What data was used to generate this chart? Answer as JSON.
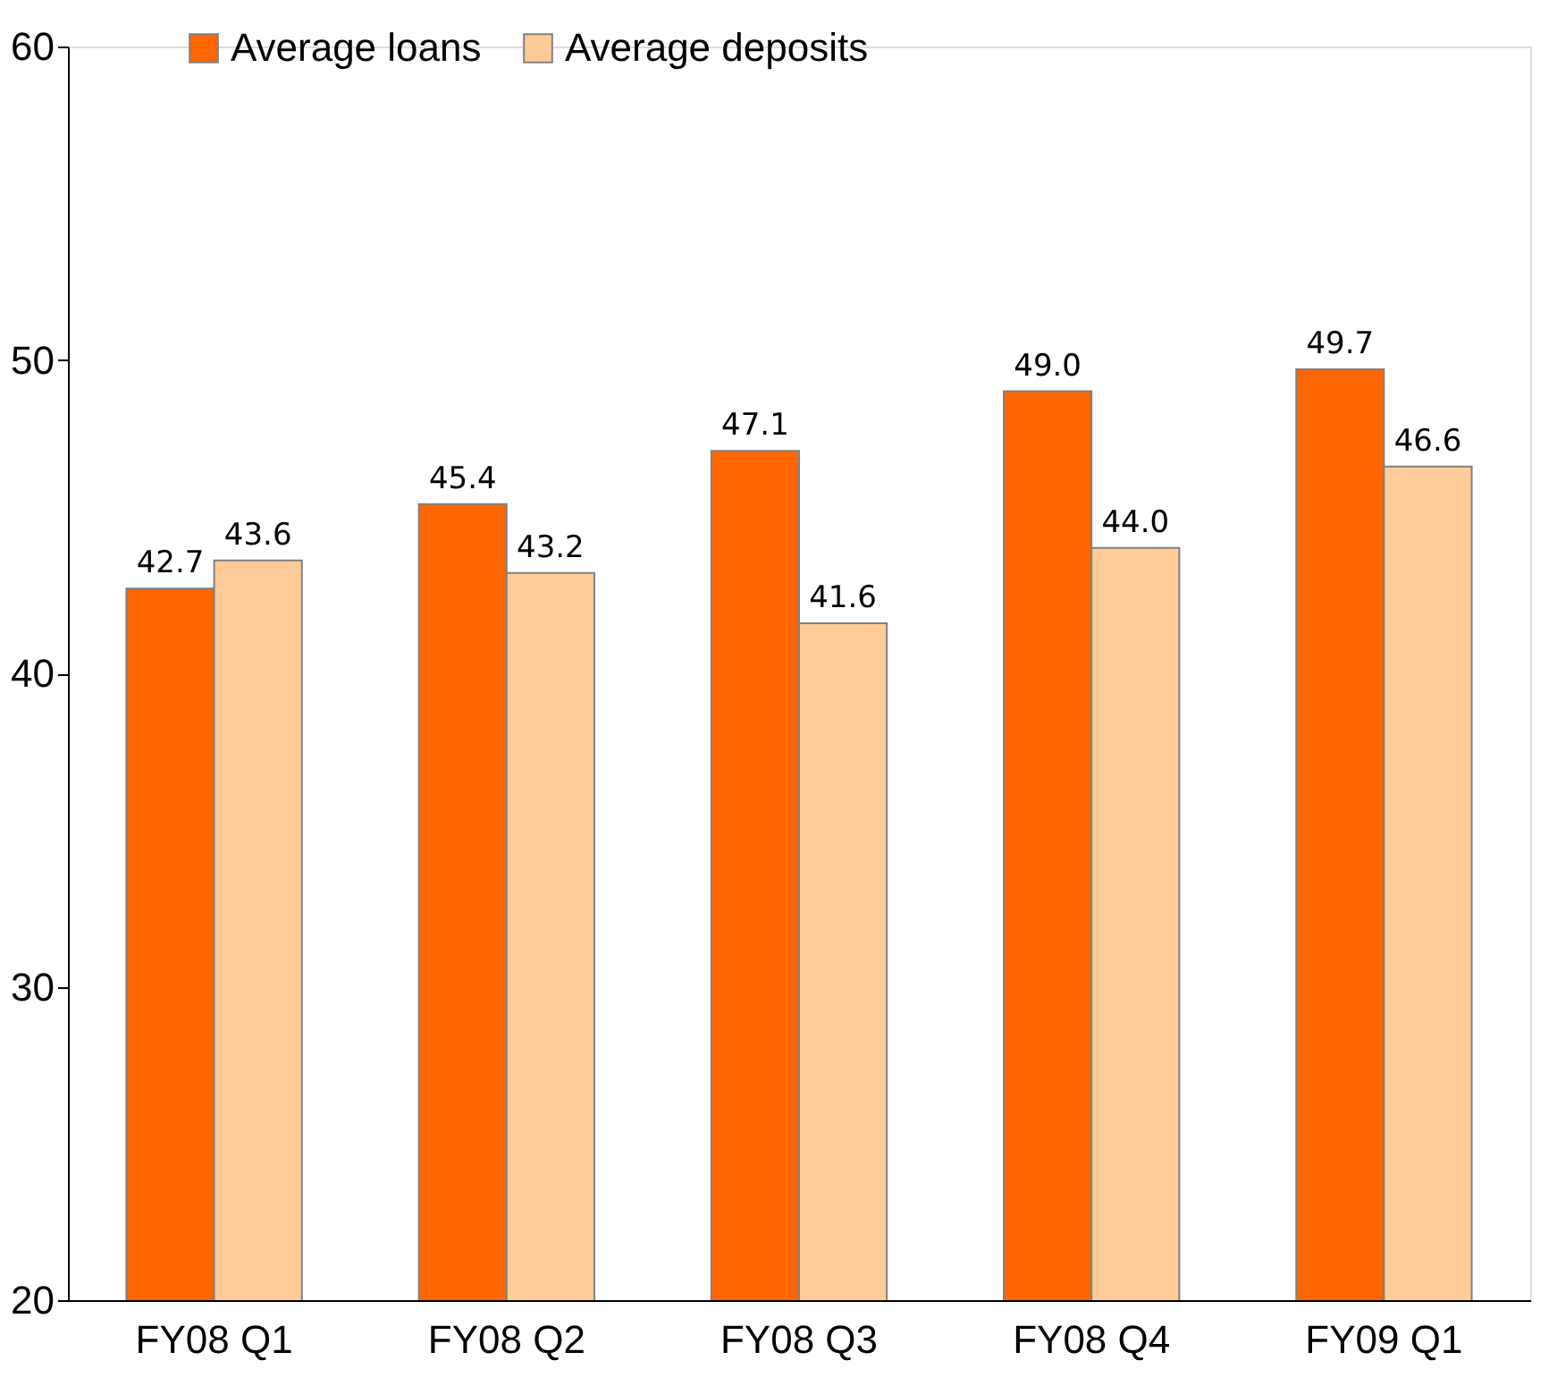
{
  "chart_data": {
    "type": "bar",
    "categories": [
      "FY08 Q1",
      "FY08 Q2",
      "FY08 Q3",
      "FY08 Q4",
      "FY09 Q1"
    ],
    "series": [
      {
        "name": "Average loans",
        "color": "#ff6600",
        "values": [
          42.7,
          45.4,
          47.1,
          49.0,
          49.7
        ],
        "value_labels": [
          "42.7",
          "45.4",
          "47.1",
          "49.0",
          "49.7"
        ]
      },
      {
        "name": "Average deposits",
        "color": "#ffcc99",
        "values": [
          43.6,
          43.2,
          41.6,
          44.0,
          46.6
        ],
        "value_labels": [
          "43.6",
          "43.2",
          "41.6",
          "44.0",
          "46.6"
        ]
      }
    ],
    "ylim": [
      20,
      60
    ],
    "yticks": [
      20,
      30,
      40,
      50,
      60
    ],
    "grid": false,
    "legend": "top"
  }
}
